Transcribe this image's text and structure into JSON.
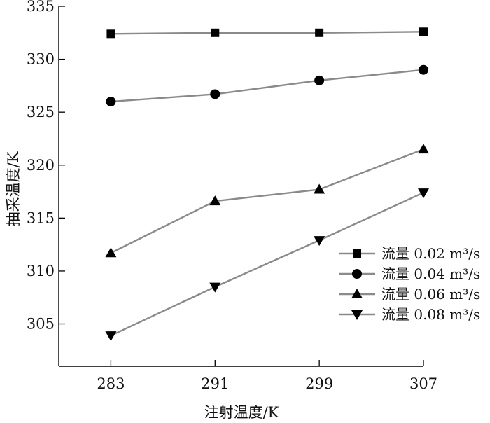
{
  "chart_data": {
    "type": "line",
    "xlabel": "注射温度/K",
    "ylabel": "抽采温度/K",
    "x": [
      283,
      291,
      299,
      307
    ],
    "xlim": [
      279,
      307
    ],
    "ylim": [
      301,
      335
    ],
    "yticks": [
      305,
      310,
      315,
      320,
      325,
      330,
      335
    ],
    "grid": false,
    "legend_position": "bottom-right",
    "line_color": "#8a8a8a",
    "marker_color": "#000000",
    "series": [
      {
        "name": "流量 0.02 m³/s",
        "marker": "square",
        "values": [
          332.4,
          332.5,
          332.5,
          332.6
        ]
      },
      {
        "name": "流量 0.04 m³/s",
        "marker": "circle",
        "values": [
          326.0,
          326.7,
          328.0,
          329.0
        ]
      },
      {
        "name": "流量 0.06 m³/s",
        "marker": "triangle-up",
        "values": [
          311.7,
          316.6,
          317.7,
          321.5
        ]
      },
      {
        "name": "流量 0.08 m³/s",
        "marker": "triangle-down",
        "values": [
          303.9,
          308.5,
          312.9,
          317.4
        ]
      }
    ]
  }
}
